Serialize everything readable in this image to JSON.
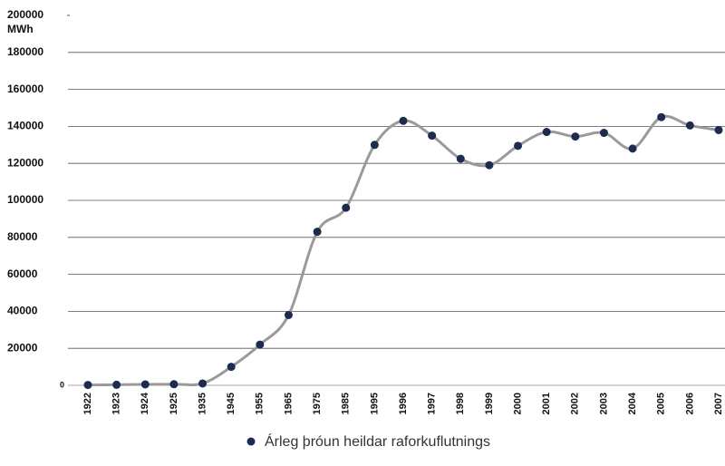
{
  "chart_data": {
    "type": "line",
    "y_unit": "MWh",
    "categories": [
      "1922",
      "1923",
      "1924",
      "1925",
      "1935",
      "1945",
      "1955",
      "1965",
      "1975",
      "1985",
      "1995",
      "1996",
      "1997",
      "1998",
      "1999",
      "2000",
      "2001",
      "2002",
      "2003",
      "2004",
      "2005",
      "2006",
      "2007"
    ],
    "series": [
      {
        "name": "Árleg þróun heildar raforkuflutnings",
        "color": "#1c2b4f",
        "line_color": "#9a9a9a",
        "values": [
          200,
          300,
          500,
          600,
          1000,
          10000,
          22000,
          38000,
          83000,
          96000,
          130000,
          143000,
          135000,
          122500,
          119000,
          129500,
          137000,
          134500,
          136500,
          128000,
          145000,
          140500,
          138000
        ]
      }
    ],
    "ylim": [
      0,
      200000
    ],
    "yticks": [
      0,
      20000,
      40000,
      60000,
      80000,
      100000,
      120000,
      140000,
      160000,
      180000,
      200000
    ],
    "grid": true,
    "smooth": true,
    "legend": "bottom"
  }
}
